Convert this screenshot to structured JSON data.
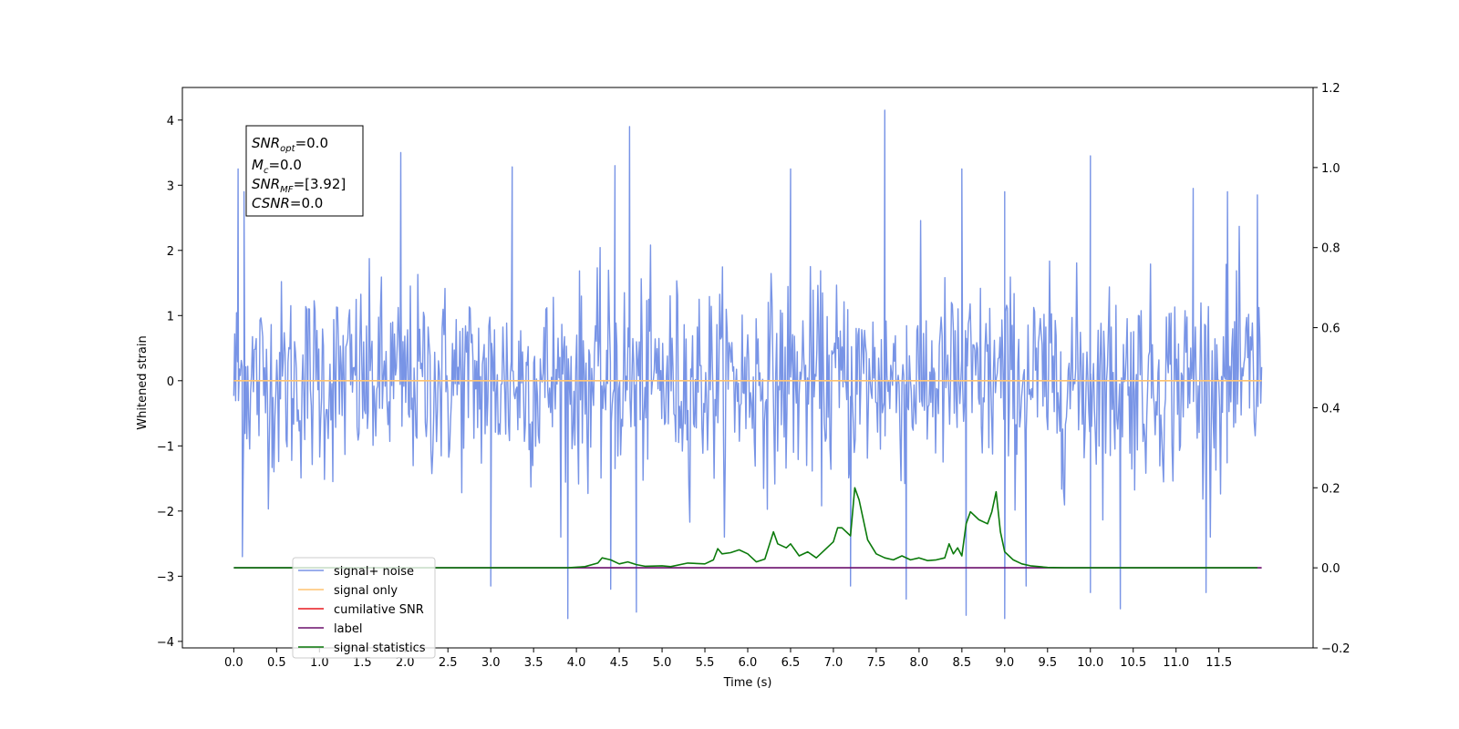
{
  "chart_data": {
    "type": "line",
    "xlabel": "Time (s)",
    "ylabel": "Whitened strain",
    "xlim": [
      -0.6,
      12.6
    ],
    "ylim": [
      -4.1,
      4.5
    ],
    "ylim_right": [
      -0.2,
      1.2
    ],
    "x_ticks": [
      "0.0",
      "0.5",
      "1.0",
      "1.5",
      "2.0",
      "2.5",
      "3.0",
      "3.5",
      "4.0",
      "4.5",
      "5.0",
      "5.5",
      "6.0",
      "6.5",
      "7.0",
      "7.5",
      "8.0",
      "8.5",
      "9.0",
      "9.5",
      "10.0",
      "10.5",
      "11.0",
      "11.5"
    ],
    "y_ticks_left": [
      "4",
      "3",
      "2",
      "1",
      "0",
      "−1",
      "−2",
      "−3",
      "−4"
    ],
    "y_ticks_right": [
      "1.2",
      "1.0",
      "0.8",
      "0.6",
      "0.4",
      "0.2",
      "0.0",
      "−0.2"
    ],
    "grid": false,
    "legend_position": "lower-left",
    "annotation": {
      "snr_opt": {
        "symbol": "SNR",
        "sub": "opt",
        "value": "=0.0"
      },
      "mc": {
        "symbol": "M",
        "sub": "c",
        "value": "=0.0"
      },
      "snr_mf": {
        "symbol": "SNR",
        "sub": "MF",
        "value": "=[3.92]"
      },
      "csnr": {
        "symbol": "CSNR",
        "value": "=0.0"
      }
    },
    "series": [
      {
        "name": "signal+ noise",
        "color": "#7894e6",
        "axis": "left",
        "x_range": [
          0.0,
          12.0
        ],
        "sd": 0.75,
        "peaks": [
          [
            0.05,
            3.25
          ],
          [
            0.12,
            2.9
          ],
          [
            1.95,
            3.5
          ],
          [
            3.25,
            3.28
          ],
          [
            4.45,
            3.3
          ],
          [
            4.62,
            3.9
          ],
          [
            6.5,
            3.25
          ],
          [
            7.6,
            4.15
          ],
          [
            8.5,
            3.25
          ],
          [
            9.0,
            2.9
          ],
          [
            10.0,
            3.45
          ],
          [
            11.2,
            2.95
          ],
          [
            11.6,
            2.9
          ],
          [
            11.95,
            2.85
          ]
        ],
        "troughs": [
          [
            0.1,
            -2.7
          ],
          [
            3.0,
            -3.15
          ],
          [
            3.9,
            -3.65
          ],
          [
            4.4,
            -3.2
          ],
          [
            4.7,
            -3.55
          ],
          [
            7.2,
            -3.15
          ],
          [
            7.85,
            -3.35
          ],
          [
            8.55,
            -3.6
          ],
          [
            9.0,
            -3.65
          ],
          [
            9.25,
            -3.15
          ],
          [
            10.0,
            -3.25
          ],
          [
            10.35,
            -3.5
          ],
          [
            11.35,
            -3.25
          ]
        ]
      },
      {
        "name": "signal only",
        "color": "#ffc470",
        "axis": "left",
        "x": [
          0.0,
          12.0
        ],
        "y": [
          0.0,
          0.0
        ]
      },
      {
        "name": "cumilative SNR",
        "color": "#e8191f",
        "axis": "right",
        "x": [],
        "y": []
      },
      {
        "name": "label",
        "color": "#6a0f6b",
        "axis": "right",
        "x": [
          0.0,
          12.0
        ],
        "y": [
          0.0,
          0.0
        ]
      },
      {
        "name": "signal statistics",
        "color": "#0b7a0b",
        "axis": "right",
        "x": [
          0.0,
          0.5,
          1.0,
          1.5,
          2.0,
          2.5,
          3.0,
          3.5,
          3.9,
          4.1,
          4.25,
          4.3,
          4.4,
          4.5,
          4.6,
          4.7,
          4.8,
          5.0,
          5.1,
          5.3,
          5.5,
          5.6,
          5.65,
          5.7,
          5.8,
          5.9,
          6.0,
          6.1,
          6.2,
          6.3,
          6.35,
          6.45,
          6.5,
          6.6,
          6.7,
          6.8,
          6.9,
          7.0,
          7.05,
          7.1,
          7.2,
          7.25,
          7.3,
          7.4,
          7.5,
          7.6,
          7.7,
          7.8,
          7.9,
          8.0,
          8.1,
          8.2,
          8.3,
          8.35,
          8.4,
          8.45,
          8.5,
          8.55,
          8.6,
          8.65,
          8.7,
          8.8,
          8.85,
          8.9,
          8.95,
          9.0,
          9.05,
          9.1,
          9.2,
          9.3,
          9.5,
          9.7,
          10.0,
          11.0,
          11.5,
          11.95
        ],
        "y": [
          0.0,
          0.0,
          0.0,
          0.0,
          0.0,
          0.0,
          0.0,
          0.0,
          0.0,
          0.003,
          0.012,
          0.025,
          0.02,
          0.01,
          0.015,
          0.008,
          0.004,
          0.005,
          0.003,
          0.012,
          0.01,
          0.02,
          0.048,
          0.035,
          0.038,
          0.045,
          0.035,
          0.015,
          0.022,
          0.09,
          0.06,
          0.05,
          0.06,
          0.03,
          0.04,
          0.025,
          0.045,
          0.065,
          0.1,
          0.1,
          0.08,
          0.2,
          0.17,
          0.07,
          0.035,
          0.025,
          0.02,
          0.03,
          0.02,
          0.025,
          0.018,
          0.02,
          0.025,
          0.06,
          0.035,
          0.05,
          0.03,
          0.11,
          0.14,
          0.13,
          0.12,
          0.11,
          0.14,
          0.19,
          0.09,
          0.04,
          0.03,
          0.02,
          0.01,
          0.005,
          0.001,
          0.0,
          0.0,
          0.0,
          0.0,
          0.0
        ]
      }
    ]
  }
}
